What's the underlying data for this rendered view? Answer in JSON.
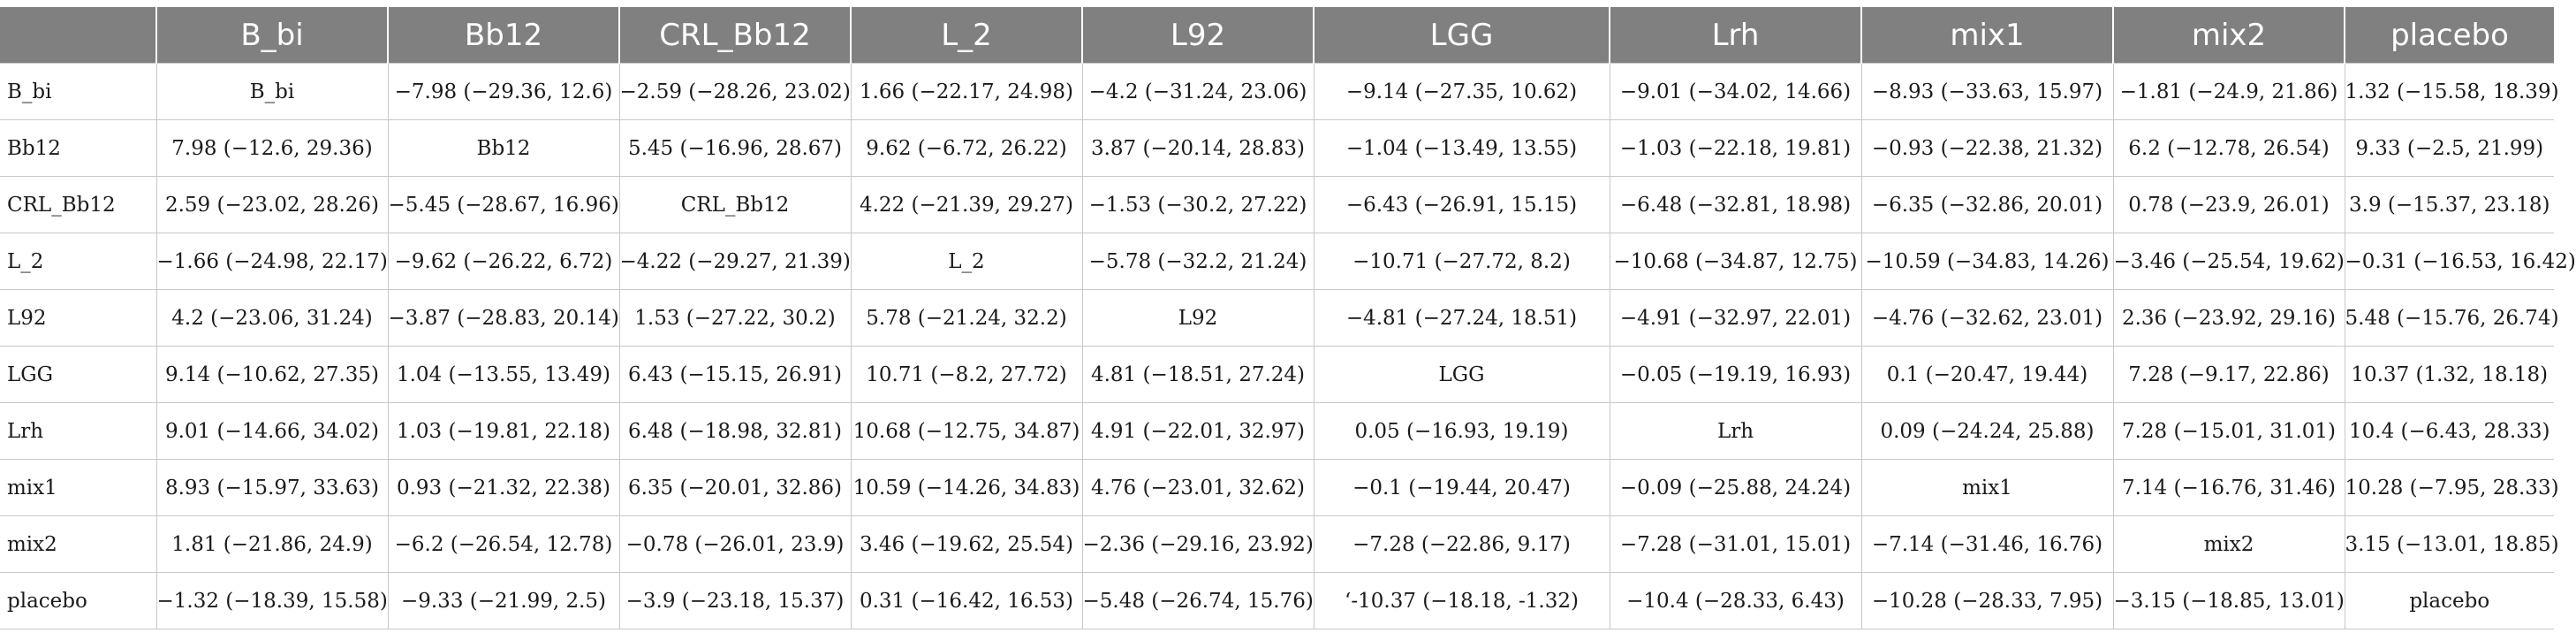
{
  "table": {
    "columns": [
      "",
      "B_bi",
      "Bb12",
      "CRL_Bb12",
      "L_2",
      "L92",
      "LGG",
      "Lrh",
      "mix1",
      "mix2",
      "placebo"
    ],
    "rows": [
      [
        "B_bi",
        "B_bi",
        "−7.98 (−29.36, 12.6)",
        "−2.59 (−28.26, 23.02)",
        "1.66 (−22.17, 24.98)",
        "−4.2 (−31.24, 23.06)",
        "−9.14 (−27.35, 10.62)",
        "−9.01 (−34.02, 14.66)",
        "−8.93 (−33.63, 15.97)",
        "−1.81 (−24.9, 21.86)",
        "1.32 (−15.58, 18.39)"
      ],
      [
        "Bb12",
        "7.98 (−12.6, 29.36)",
        "Bb12",
        "5.45 (−16.96, 28.67)",
        "9.62 (−6.72, 26.22)",
        "3.87 (−20.14, 28.83)",
        "−1.04 (−13.49, 13.55)",
        "−1.03 (−22.18, 19.81)",
        "−0.93 (−22.38, 21.32)",
        "6.2 (−12.78, 26.54)",
        "9.33 (−2.5, 21.99)"
      ],
      [
        "CRL_Bb12",
        "2.59 (−23.02, 28.26)",
        "−5.45 (−28.67, 16.96)",
        "CRL_Bb12",
        "4.22 (−21.39, 29.27)",
        "−1.53 (−30.2, 27.22)",
        "−6.43 (−26.91, 15.15)",
        "−6.48 (−32.81, 18.98)",
        "−6.35 (−32.86, 20.01)",
        "0.78 (−23.9, 26.01)",
        "3.9 (−15.37, 23.18)"
      ],
      [
        "L_2",
        "−1.66 (−24.98, 22.17)",
        "−9.62 (−26.22, 6.72)",
        "−4.22 (−29.27, 21.39)",
        "L_2",
        "−5.78 (−32.2, 21.24)",
        "−10.71 (−27.72, 8.2)",
        "−10.68 (−34.87, 12.75)",
        "−10.59 (−34.83, 14.26)",
        "−3.46 (−25.54, 19.62)",
        "−0.31 (−16.53, 16.42)"
      ],
      [
        "L92",
        "4.2 (−23.06, 31.24)",
        "−3.87 (−28.83, 20.14)",
        "1.53 (−27.22, 30.2)",
        "5.78 (−21.24, 32.2)",
        "L92",
        "−4.81 (−27.24, 18.51)",
        "−4.91 (−32.97, 22.01)",
        "−4.76 (−32.62, 23.01)",
        "2.36 (−23.92, 29.16)",
        "5.48 (−15.76, 26.74)"
      ],
      [
        "LGG",
        "9.14 (−10.62, 27.35)",
        "1.04 (−13.55, 13.49)",
        "6.43 (−15.15, 26.91)",
        "10.71 (−8.2, 27.72)",
        "4.81 (−18.51, 27.24)",
        "LGG",
        "−0.05 (−19.19, 16.93)",
        "0.1 (−20.47, 19.44)",
        "7.28 (−9.17, 22.86)",
        "10.37 (1.32, 18.18)"
      ],
      [
        "Lrh",
        "9.01 (−14.66, 34.02)",
        "1.03 (−19.81, 22.18)",
        "6.48 (−18.98, 32.81)",
        "10.68 (−12.75, 34.87)",
        "4.91 (−22.01, 32.97)",
        "0.05 (−16.93, 19.19)",
        "Lrh",
        "0.09 (−24.24, 25.88)",
        "7.28 (−15.01, 31.01)",
        "10.4 (−6.43, 28.33)"
      ],
      [
        "mix1",
        "8.93 (−15.97, 33.63)",
        "0.93 (−21.32, 22.38)",
        "6.35 (−20.01, 32.86)",
        "10.59 (−14.26, 34.83)",
        "4.76 (−23.01, 32.62)",
        "−0.1 (−19.44, 20.47)",
        "−0.09 (−25.88, 24.24)",
        "mix1",
        "7.14 (−16.76, 31.46)",
        "10.28 (−7.95, 28.33)"
      ],
      [
        "mix2",
        "1.81 (−21.86, 24.9)",
        "−6.2 (−26.54, 12.78)",
        "−0.78 (−26.01, 23.9)",
        "3.46 (−19.62, 25.54)",
        "−2.36 (−29.16, 23.92)",
        "−7.28 (−22.86, 9.17)",
        "−7.28 (−31.01, 15.01)",
        "−7.14 (−31.46, 16.76)",
        "mix2",
        "3.15 (−13.01, 18.85)"
      ],
      [
        "placebo",
        "−1.32 (−18.39, 15.58)",
        "−9.33 (−21.99, 2.5)",
        "−3.9 (−23.18, 15.37)",
        "0.31 (−16.42, 16.53)",
        "−5.48 (−26.74, 15.76)",
        "‘-10.37 (−18.18,  -1.32)",
        "−10.4 (−28.33, 6.43)",
        "−10.28 (−28.33, 7.95)",
        "−3.15 (−18.85, 13.01)",
        "placebo"
      ]
    ]
  }
}
